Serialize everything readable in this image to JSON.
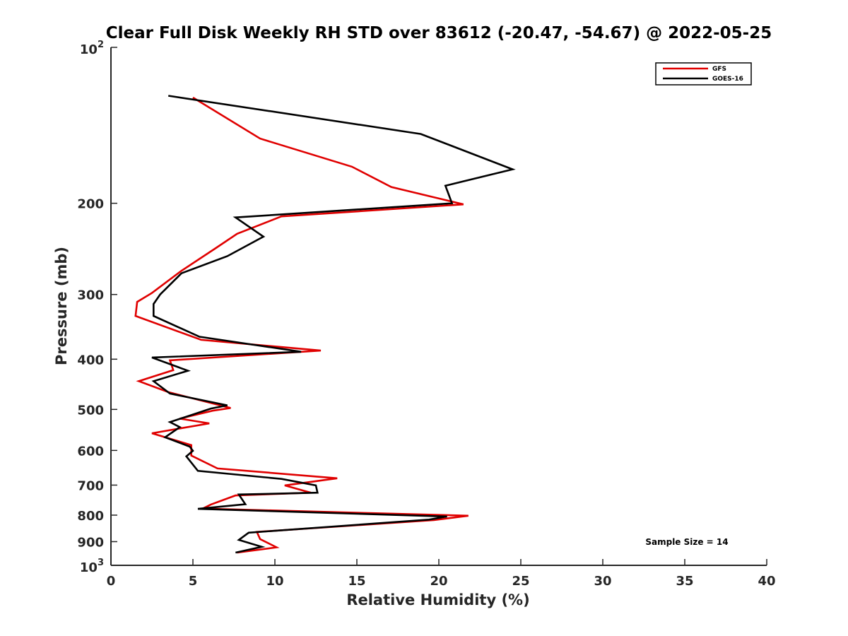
{
  "chart_data": {
    "type": "line",
    "title": "Clear Full Disk Weekly RH STD over 83612 (-20.47, -54.67) @ 2022-05-25",
    "xlabel": "Relative Humidity (%)",
    "ylabel": "Pressure (mb)",
    "xlim": [
      0,
      40
    ],
    "ylim": [
      100,
      1000
    ],
    "y_scale": "log",
    "y_reversed": true,
    "grid": false,
    "legend_position": "top-right",
    "x_ticks": [
      0,
      5,
      10,
      15,
      20,
      25,
      30,
      35,
      40
    ],
    "x_tick_labels": [
      "0",
      "5",
      "10",
      "15",
      "20",
      "25",
      "30",
      "35",
      "40"
    ],
    "y_ticks": [
      200,
      300,
      400,
      500,
      600,
      700,
      800,
      900
    ],
    "y_tick_labels": [
      "200",
      "300",
      "400",
      "500",
      "600",
      "700",
      "800",
      "900"
    ],
    "y_end_labels": [
      {
        "base": "10",
        "exp": "2",
        "value": 100
      },
      {
        "base": "10",
        "exp": "3",
        "value": 1000
      }
    ],
    "annotation": "Sample Size = 14",
    "series": [
      {
        "name": "GFS",
        "color": "#e00000",
        "points": [
          [
            5.0,
            125
          ],
          [
            9.1,
            150
          ],
          [
            14.7,
            170
          ],
          [
            17.1,
            186
          ],
          [
            21.5,
            201
          ],
          [
            10.4,
            212
          ],
          [
            7.7,
            229
          ],
          [
            6.4,
            244
          ],
          [
            4.3,
            270
          ],
          [
            2.5,
            298
          ],
          [
            1.6,
            310
          ],
          [
            1.5,
            330
          ],
          [
            5.5,
            367
          ],
          [
            12.8,
            385
          ],
          [
            3.6,
            402
          ],
          [
            3.8,
            420
          ],
          [
            1.7,
            441
          ],
          [
            3.5,
            463
          ],
          [
            7.3,
            497
          ],
          [
            6.2,
            503
          ],
          [
            4.2,
            521
          ],
          [
            6.0,
            532
          ],
          [
            2.5,
            556
          ],
          [
            4.9,
            586
          ],
          [
            4.9,
            598
          ],
          [
            4.9,
            614
          ],
          [
            6.5,
            650
          ],
          [
            13.8,
            679
          ],
          [
            10.6,
            701
          ],
          [
            12.2,
            724
          ],
          [
            7.6,
            733
          ],
          [
            6.1,
            763
          ],
          [
            5.6,
            777
          ],
          [
            21.8,
            802
          ],
          [
            19.7,
            818
          ],
          [
            8.9,
            862
          ],
          [
            9.1,
            890
          ],
          [
            10.1,
            923
          ],
          [
            7.7,
            945
          ]
        ]
      },
      {
        "name": "GOES-16",
        "color": "#000000",
        "points": [
          [
            3.5,
            124
          ],
          [
            18.9,
            147
          ],
          [
            24.5,
            172
          ],
          [
            20.4,
            185
          ],
          [
            20.8,
            200
          ],
          [
            7.6,
            213
          ],
          [
            9.3,
            232
          ],
          [
            7.1,
            253
          ],
          [
            4.3,
            273
          ],
          [
            3.0,
            300
          ],
          [
            2.6,
            313
          ],
          [
            2.6,
            330
          ],
          [
            5.4,
            362
          ],
          [
            11.6,
            387
          ],
          [
            2.5,
            397
          ],
          [
            4.7,
            421
          ],
          [
            2.6,
            441
          ],
          [
            3.6,
            466
          ],
          [
            7.1,
            491
          ],
          [
            6.1,
            498
          ],
          [
            3.6,
            529
          ],
          [
            4.2,
            541
          ],
          [
            3.3,
            566
          ],
          [
            4.8,
            590
          ],
          [
            5.0,
            601
          ],
          [
            4.6,
            616
          ],
          [
            5.3,
            657
          ],
          [
            10.4,
            681
          ],
          [
            12.5,
            701
          ],
          [
            12.6,
            724
          ],
          [
            7.8,
            730
          ],
          [
            8.2,
            762
          ],
          [
            5.3,
            778
          ],
          [
            20.5,
            805
          ],
          [
            19.4,
            816
          ],
          [
            8.4,
            865
          ],
          [
            7.8,
            893
          ],
          [
            9.2,
            921
          ],
          [
            7.6,
            945
          ]
        ]
      }
    ]
  }
}
